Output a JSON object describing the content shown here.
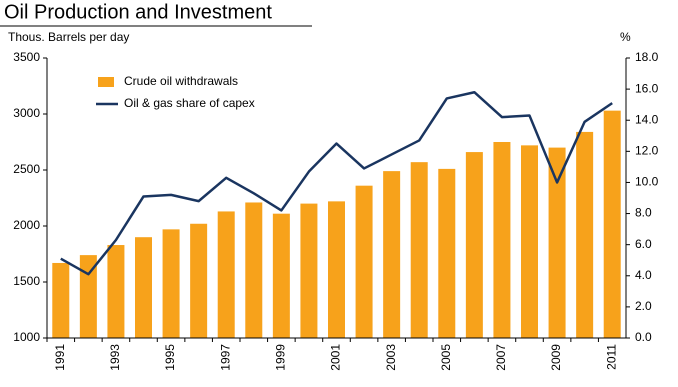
{
  "chart_data": {
    "type": "bar",
    "title": "Oil Production and Investment",
    "y_label": "Thous. Barrels per day",
    "y2_label": "%",
    "categories": [
      "1991",
      null,
      "1993",
      null,
      "1995",
      null,
      "1997",
      null,
      "1999",
      null,
      "2001",
      null,
      "2003",
      null,
      "2005",
      null,
      "2007",
      null,
      "2009",
      null,
      "2011"
    ],
    "series": [
      {
        "name": "Crude oil withdrawals",
        "type": "bar",
        "color": "#f7a21b",
        "values": [
          1670,
          1740,
          1830,
          1900,
          1970,
          2020,
          2130,
          2210,
          2110,
          2200,
          2220,
          2360,
          2490,
          2570,
          2510,
          2660,
          2750,
          2720,
          2700,
          2840,
          3030
        ]
      },
      {
        "name": "Oil & gas share of capex",
        "type": "line",
        "color": "#1a3560",
        "axis": "y2",
        "values": [
          5.1,
          4.1,
          6.3,
          9.1,
          9.2,
          8.8,
          10.3,
          9.3,
          8.2,
          10.7,
          12.5,
          10.9,
          11.8,
          12.7,
          15.4,
          15.8,
          14.2,
          14.3,
          10.0,
          13.9,
          15.1
        ]
      }
    ],
    "ylim": [
      1000,
      3500
    ],
    "yticks": [
      1000,
      1500,
      2000,
      2500,
      3000,
      3500
    ],
    "y2lim": [
      0,
      18
    ],
    "y2ticks": [
      {
        "value": 0,
        "label": "0.0"
      },
      {
        "value": 2,
        "label": "2.0"
      },
      {
        "value": 4,
        "label": "4.0"
      },
      {
        "value": 6,
        "label": "6.0"
      },
      {
        "value": 8,
        "label": "8.0"
      },
      {
        "value": 10,
        "label": "10.0"
      },
      {
        "value": 12,
        "label": "12.0"
      },
      {
        "value": 14,
        "label": "14.0"
      },
      {
        "value": 16,
        "label": "16.0"
      },
      {
        "value": 18,
        "label": "18.0"
      }
    ],
    "grid": false,
    "legend": "top-left"
  }
}
